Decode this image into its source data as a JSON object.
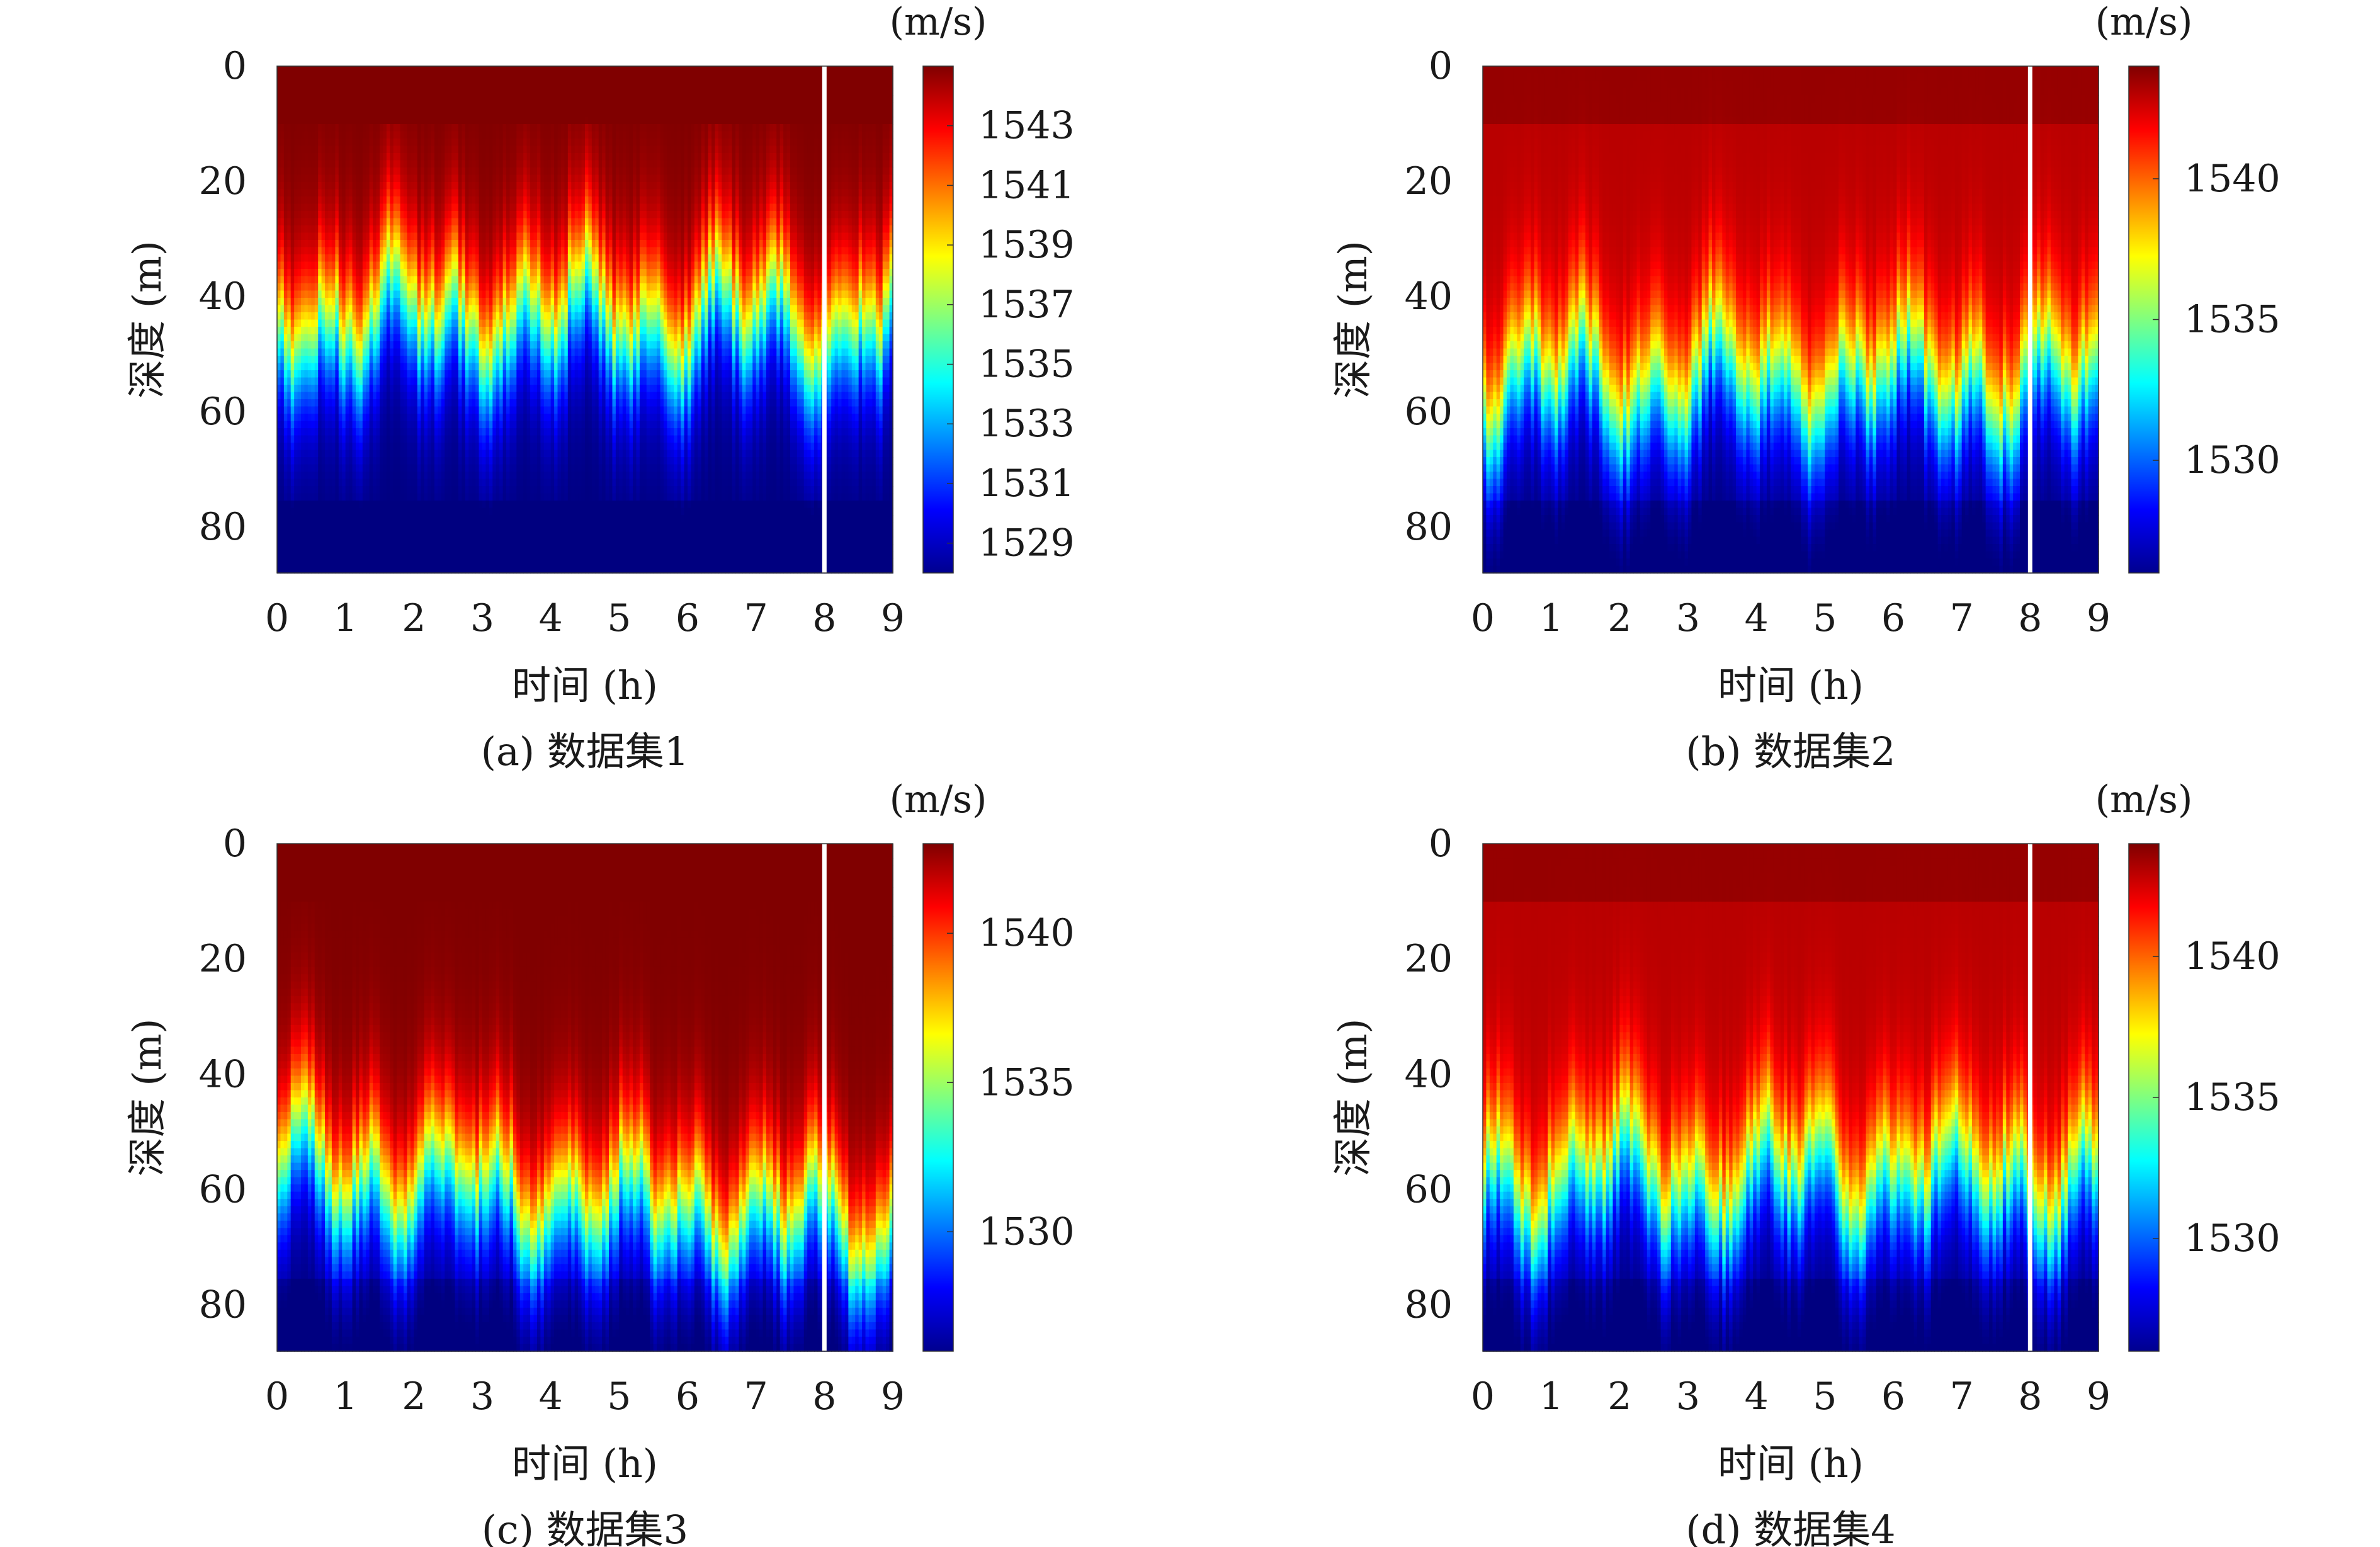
{
  "chart_data": [
    {
      "type": "heatmap",
      "caption": "(a) 数据集1",
      "xlabel": "时间 (h)",
      "ylabel": "深度 (m)",
      "colorbar_unit": "(m/s)",
      "xlim": [
        0,
        9
      ],
      "ylim": [
        88,
        0
      ],
      "x_ticks": [
        "0",
        "1",
        "2",
        "3",
        "4",
        "5",
        "6",
        "7",
        "8",
        "9"
      ],
      "y_ticks": [
        "0",
        "20",
        "40",
        "60",
        "80"
      ],
      "colorbar_ticks": [
        "1543",
        "1541",
        "1539",
        "1537",
        "1535",
        "1533",
        "1531",
        "1529"
      ],
      "value_range": [
        1528,
        1545
      ],
      "divider_x": 8,
      "thermocline_depth_m": 44,
      "surface_speed": 1545,
      "bottom_speed": 1528
    },
    {
      "type": "heatmap",
      "caption": "(b) 数据集2",
      "xlabel": "时间 (h)",
      "ylabel": "深度 (m)",
      "colorbar_unit": "(m/s)",
      "xlim": [
        0,
        9
      ],
      "ylim": [
        88,
        0
      ],
      "x_ticks": [
        "0",
        "1",
        "2",
        "3",
        "4",
        "5",
        "6",
        "7",
        "8",
        "9"
      ],
      "y_ticks": [
        "0",
        "20",
        "40",
        "60",
        "80"
      ],
      "colorbar_ticks": [
        "1540",
        "1535",
        "1530"
      ],
      "value_range": [
        1526,
        1544
      ],
      "divider_x": 8,
      "thermocline_depth_m": 55,
      "surface_speed": 1543,
      "bottom_speed": 1526
    },
    {
      "type": "heatmap",
      "caption": "(c) 数据集3",
      "xlabel": "时间 (h)",
      "ylabel": "深度 (m)",
      "colorbar_unit": "(m/s)",
      "xlim": [
        0,
        9
      ],
      "ylim": [
        88,
        0
      ],
      "x_ticks": [
        "0",
        "1",
        "2",
        "3",
        "4",
        "5",
        "6",
        "7",
        "8",
        "9"
      ],
      "y_ticks": [
        "0",
        "20",
        "40",
        "60",
        "80"
      ],
      "colorbar_ticks": [
        "1540",
        "1535",
        "1530"
      ],
      "value_range": [
        1526,
        1543
      ],
      "divider_x": 8,
      "thermocline_depth_m": 56,
      "surface_speed": 1543,
      "bottom_speed": 1526
    },
    {
      "type": "heatmap",
      "caption": "(d) 数据集4",
      "xlabel": "时间 (h)",
      "ylabel": "深度 (m)",
      "colorbar_unit": "(m/s)",
      "xlim": [
        0,
        9
      ],
      "ylim": [
        88,
        0
      ],
      "x_ticks": [
        "0",
        "1",
        "2",
        "3",
        "4",
        "5",
        "6",
        "7",
        "8",
        "9"
      ],
      "y_ticks": [
        "0",
        "20",
        "40",
        "60",
        "80"
      ],
      "colorbar_ticks": [
        "1540",
        "1535",
        "1530"
      ],
      "value_range": [
        1526,
        1544
      ],
      "divider_x": 8,
      "thermocline_depth_m": 58,
      "surface_speed": 1543,
      "bottom_speed": 1526
    }
  ],
  "colormap": "jet",
  "divider_color": "#ffffff"
}
